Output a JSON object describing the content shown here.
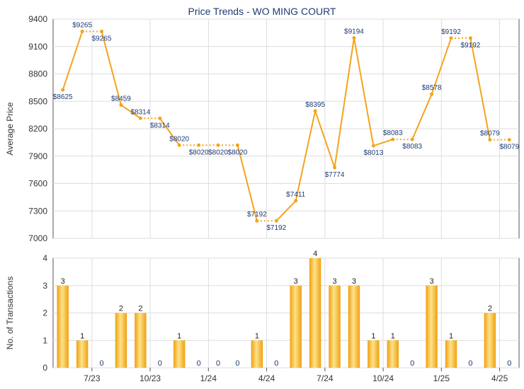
{
  "title": "Price Trends - WO MING COURT",
  "colors": {
    "line": "#f4a41c",
    "bar_light": "#fde28a",
    "bar_dark": "#f0a010",
    "title": "#1f3b73",
    "label": "#1f3b73",
    "grid": "#dddddd",
    "axis": "#555555"
  },
  "chart_data": [
    {
      "type": "line",
      "title": "Price Trends - WO MING COURT",
      "xlabel": "",
      "ylabel": "Average Price",
      "ylim": [
        7000,
        9400
      ],
      "yticks": [
        7000,
        7300,
        7600,
        7900,
        8200,
        8500,
        8800,
        9100,
        9400
      ],
      "grid": true,
      "points": [
        {
          "i": 0,
          "y": 8625,
          "label": "$8625",
          "connect": "solid"
        },
        {
          "i": 1,
          "y": 9265,
          "label": "$9265",
          "connect": "solid"
        },
        {
          "i": 2,
          "y": 9265,
          "label": "$9265",
          "connect": "dotted"
        },
        {
          "i": 3,
          "y": 8459,
          "label": "$8459",
          "connect": "solid"
        },
        {
          "i": 4,
          "y": 8314,
          "label": "$8314",
          "connect": "solid"
        },
        {
          "i": 5,
          "y": 8314,
          "label": "$8314",
          "connect": "dotted"
        },
        {
          "i": 6,
          "y": 8020,
          "label": "$8020",
          "connect": "solid"
        },
        {
          "i": 7,
          "y": 8020,
          "label": "$8020",
          "connect": "dotted"
        },
        {
          "i": 8,
          "y": 8020,
          "label": "$8020",
          "connect": "dotted"
        },
        {
          "i": 9,
          "y": 8020,
          "label": "$8020",
          "connect": "dotted"
        },
        {
          "i": 10,
          "y": 7192,
          "label": "$7192",
          "connect": "solid"
        },
        {
          "i": 11,
          "y": 7192,
          "label": "$7192",
          "connect": "dotted"
        },
        {
          "i": 12,
          "y": 7411,
          "label": "$7411",
          "connect": "solid"
        },
        {
          "i": 13,
          "y": 8395,
          "label": "$8395",
          "connect": "solid"
        },
        {
          "i": 14,
          "y": 7774,
          "label": "$7774",
          "connect": "solid"
        },
        {
          "i": 15,
          "y": 9194,
          "label": "$9194",
          "connect": "solid"
        },
        {
          "i": 16,
          "y": 8013,
          "label": "$8013",
          "connect": "solid"
        },
        {
          "i": 17,
          "y": 8083,
          "label": "$8083",
          "connect": "solid"
        },
        {
          "i": 18,
          "y": 8083,
          "label": "$8083",
          "connect": "dotted"
        },
        {
          "i": 19,
          "y": 8578,
          "label": "$8578",
          "connect": "solid"
        },
        {
          "i": 20,
          "y": 9192,
          "label": "$9192",
          "connect": "solid"
        },
        {
          "i": 21,
          "y": 9192,
          "label": "$9192",
          "connect": "dotted"
        },
        {
          "i": 22,
          "y": 8079,
          "label": "$8079",
          "connect": "solid"
        },
        {
          "i": 23,
          "y": 8079,
          "label": "$8079",
          "connect": "dotted"
        }
      ]
    },
    {
      "type": "bar",
      "xlabel": "",
      "ylabel": "No. of Transactions",
      "ylim": [
        0,
        4
      ],
      "yticks": [
        0,
        1,
        2,
        3,
        4
      ],
      "grid": true,
      "values": [
        3,
        1,
        0,
        2,
        2,
        0,
        1,
        0,
        0,
        0,
        1,
        0,
        3,
        4,
        3,
        3,
        1,
        1,
        0,
        3,
        1,
        0,
        2,
        0
      ],
      "xticks": [
        {
          "at": 2,
          "label": "7/23"
        },
        {
          "at": 5,
          "label": "10/23"
        },
        {
          "at": 8,
          "label": "1/24"
        },
        {
          "at": 11,
          "label": "4/24"
        },
        {
          "at": 14,
          "label": "7/24"
        },
        {
          "at": 17,
          "label": "10/24"
        },
        {
          "at": 20,
          "label": "1/25"
        },
        {
          "at": 23,
          "label": "4/25"
        }
      ]
    }
  ]
}
